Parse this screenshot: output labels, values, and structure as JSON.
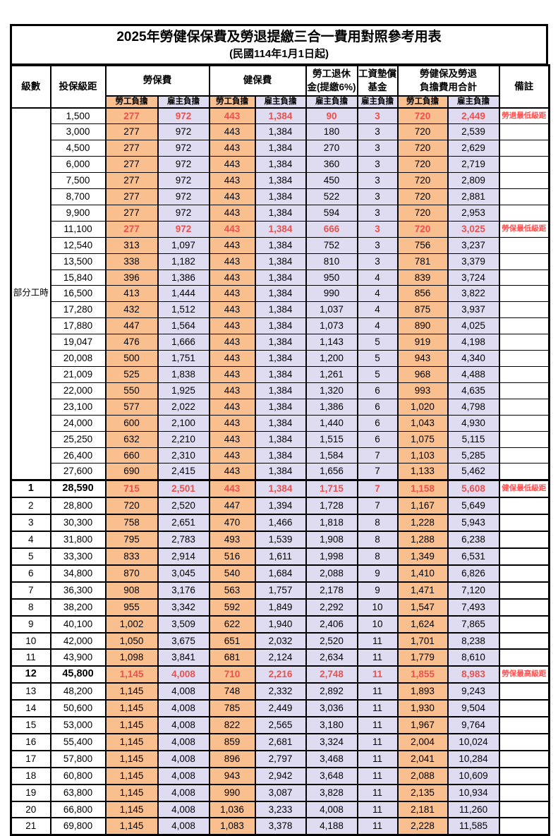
{
  "title": "2025年勞健保保費及勞退提繳三合一費用對照參考用表",
  "subtitle": "(民國114年1月1日起)",
  "header": {
    "level": "級數",
    "bracket": "投保級距",
    "labor_insurance": "勞保費",
    "health_insurance": "健保費",
    "pension_line1": "勞工退休",
    "pension_line2": "金(提繳6%)",
    "wage_fund_line1": "工資墊償",
    "wage_fund_line2": "基金",
    "total_line1": "勞健保及勞退",
    "total_line2": "負擔費用合計",
    "note": "備註",
    "employee": "勞工負擔",
    "employer": "雇主負擔"
  },
  "part_time_label": "部分工時",
  "colors": {
    "employee_bg": "#fabf8f",
    "employer_bg": "#dfdcf2",
    "highlight_text": "#e8524e",
    "note_text": "#ff5050",
    "border": "#000000"
  },
  "rows": [
    {
      "level": "",
      "bracket": "1,500",
      "values": [
        "277",
        "972",
        "443",
        "1,384",
        "90",
        "3",
        "720",
        "2,449"
      ],
      "note": "勞退最低級距",
      "highlight": true,
      "bold": false
    },
    {
      "level": "",
      "bracket": "3,000",
      "values": [
        "277",
        "972",
        "443",
        "1,384",
        "180",
        "3",
        "720",
        "2,539"
      ],
      "note": "",
      "highlight": false,
      "bold": false
    },
    {
      "level": "",
      "bracket": "4,500",
      "values": [
        "277",
        "972",
        "443",
        "1,384",
        "270",
        "3",
        "720",
        "2,629"
      ],
      "note": "",
      "highlight": false,
      "bold": false
    },
    {
      "level": "",
      "bracket": "6,000",
      "values": [
        "277",
        "972",
        "443",
        "1,384",
        "360",
        "3",
        "720",
        "2,719"
      ],
      "note": "",
      "highlight": false,
      "bold": false
    },
    {
      "level": "",
      "bracket": "7,500",
      "values": [
        "277",
        "972",
        "443",
        "1,384",
        "450",
        "3",
        "720",
        "2,809"
      ],
      "note": "",
      "highlight": false,
      "bold": false
    },
    {
      "level": "",
      "bracket": "8,700",
      "values": [
        "277",
        "972",
        "443",
        "1,384",
        "522",
        "3",
        "720",
        "2,881"
      ],
      "note": "",
      "highlight": false,
      "bold": false
    },
    {
      "level": "",
      "bracket": "9,900",
      "values": [
        "277",
        "972",
        "443",
        "1,384",
        "594",
        "3",
        "720",
        "2,953"
      ],
      "note": "",
      "highlight": false,
      "bold": false
    },
    {
      "level": "",
      "bracket": "11,100",
      "values": [
        "277",
        "972",
        "443",
        "1,384",
        "666",
        "3",
        "720",
        "3,025"
      ],
      "note": "勞保最低級距",
      "highlight": true,
      "bold": false
    },
    {
      "level": "",
      "bracket": "12,540",
      "values": [
        "313",
        "1,097",
        "443",
        "1,384",
        "752",
        "3",
        "756",
        "3,237"
      ],
      "note": "",
      "highlight": false,
      "bold": false
    },
    {
      "level": "",
      "bracket": "13,500",
      "values": [
        "338",
        "1,182",
        "443",
        "1,384",
        "810",
        "3",
        "781",
        "3,379"
      ],
      "note": "",
      "highlight": false,
      "bold": false
    },
    {
      "level": "",
      "bracket": "15,840",
      "values": [
        "396",
        "1,386",
        "443",
        "1,384",
        "950",
        "4",
        "839",
        "3,724"
      ],
      "note": "",
      "highlight": false,
      "bold": false
    },
    {
      "level": "",
      "bracket": "16,500",
      "values": [
        "413",
        "1,444",
        "443",
        "1,384",
        "990",
        "4",
        "856",
        "3,822"
      ],
      "note": "",
      "highlight": false,
      "bold": false
    },
    {
      "level": "",
      "bracket": "17,280",
      "values": [
        "432",
        "1,512",
        "443",
        "1,384",
        "1,037",
        "4",
        "875",
        "3,937"
      ],
      "note": "",
      "highlight": false,
      "bold": false
    },
    {
      "level": "",
      "bracket": "17,880",
      "values": [
        "447",
        "1,564",
        "443",
        "1,384",
        "1,073",
        "4",
        "890",
        "4,025"
      ],
      "note": "",
      "highlight": false,
      "bold": false
    },
    {
      "level": "",
      "bracket": "19,047",
      "values": [
        "476",
        "1,666",
        "443",
        "1,384",
        "1,143",
        "5",
        "919",
        "4,198"
      ],
      "note": "",
      "highlight": false,
      "bold": false
    },
    {
      "level": "",
      "bracket": "20,008",
      "values": [
        "500",
        "1,751",
        "443",
        "1,384",
        "1,200",
        "5",
        "943",
        "4,340"
      ],
      "note": "",
      "highlight": false,
      "bold": false
    },
    {
      "level": "",
      "bracket": "21,009",
      "values": [
        "525",
        "1,838",
        "443",
        "1,384",
        "1,261",
        "5",
        "968",
        "4,488"
      ],
      "note": "",
      "highlight": false,
      "bold": false
    },
    {
      "level": "",
      "bracket": "22,000",
      "values": [
        "550",
        "1,925",
        "443",
        "1,384",
        "1,320",
        "6",
        "993",
        "4,635"
      ],
      "note": "",
      "highlight": false,
      "bold": false
    },
    {
      "level": "",
      "bracket": "23,100",
      "values": [
        "577",
        "2,022",
        "443",
        "1,384",
        "1,386",
        "6",
        "1,020",
        "4,798"
      ],
      "note": "",
      "highlight": false,
      "bold": false
    },
    {
      "level": "",
      "bracket": "24,000",
      "values": [
        "600",
        "2,100",
        "443",
        "1,384",
        "1,440",
        "6",
        "1,043",
        "4,930"
      ],
      "note": "",
      "highlight": false,
      "bold": false
    },
    {
      "level": "",
      "bracket": "25,250",
      "values": [
        "632",
        "2,210",
        "443",
        "1,384",
        "1,515",
        "6",
        "1,075",
        "5,115"
      ],
      "note": "",
      "highlight": false,
      "bold": false
    },
    {
      "level": "",
      "bracket": "26,400",
      "values": [
        "660",
        "2,310",
        "443",
        "1,384",
        "1,584",
        "7",
        "1,103",
        "5,285"
      ],
      "note": "",
      "highlight": false,
      "bold": false
    },
    {
      "level": "",
      "bracket": "27,600",
      "values": [
        "690",
        "2,415",
        "443",
        "1,384",
        "1,656",
        "7",
        "1,133",
        "5,462"
      ],
      "note": "",
      "highlight": false,
      "bold": false
    },
    {
      "level": "1",
      "bracket": "28,590",
      "values": [
        "715",
        "2,501",
        "443",
        "1,384",
        "1,715",
        "7",
        "1,158",
        "5,608"
      ],
      "note": "健保最低級距",
      "highlight": true,
      "bold": true
    },
    {
      "level": "2",
      "bracket": "28,800",
      "values": [
        "720",
        "2,520",
        "447",
        "1,394",
        "1,728",
        "7",
        "1,167",
        "5,649"
      ],
      "note": "",
      "highlight": false,
      "bold": false
    },
    {
      "level": "3",
      "bracket": "30,300",
      "values": [
        "758",
        "2,651",
        "470",
        "1,466",
        "1,818",
        "8",
        "1,228",
        "5,943"
      ],
      "note": "",
      "highlight": false,
      "bold": false
    },
    {
      "level": "4",
      "bracket": "31,800",
      "values": [
        "795",
        "2,783",
        "493",
        "1,539",
        "1,908",
        "8",
        "1,288",
        "6,238"
      ],
      "note": "",
      "highlight": false,
      "bold": false
    },
    {
      "level": "5",
      "bracket": "33,300",
      "values": [
        "833",
        "2,914",
        "516",
        "1,611",
        "1,998",
        "8",
        "1,349",
        "6,531"
      ],
      "note": "",
      "highlight": false,
      "bold": false
    },
    {
      "level": "6",
      "bracket": "34,800",
      "values": [
        "870",
        "3,045",
        "540",
        "1,684",
        "2,088",
        "9",
        "1,410",
        "6,826"
      ],
      "note": "",
      "highlight": false,
      "bold": false
    },
    {
      "level": "7",
      "bracket": "36,300",
      "values": [
        "908",
        "3,176",
        "563",
        "1,757",
        "2,178",
        "9",
        "1,471",
        "7,120"
      ],
      "note": "",
      "highlight": false,
      "bold": false
    },
    {
      "level": "8",
      "bracket": "38,200",
      "values": [
        "955",
        "3,342",
        "592",
        "1,849",
        "2,292",
        "10",
        "1,547",
        "7,493"
      ],
      "note": "",
      "highlight": false,
      "bold": false
    },
    {
      "level": "9",
      "bracket": "40,100",
      "values": [
        "1,002",
        "3,509",
        "622",
        "1,940",
        "2,406",
        "10",
        "1,624",
        "7,865"
      ],
      "note": "",
      "highlight": false,
      "bold": false
    },
    {
      "level": "10",
      "bracket": "42,000",
      "values": [
        "1,050",
        "3,675",
        "651",
        "2,032",
        "2,520",
        "11",
        "1,701",
        "8,238"
      ],
      "note": "",
      "highlight": false,
      "bold": false
    },
    {
      "level": "11",
      "bracket": "43,900",
      "values": [
        "1,098",
        "3,841",
        "681",
        "2,124",
        "2,634",
        "11",
        "1,779",
        "8,610"
      ],
      "note": "",
      "highlight": false,
      "bold": false
    },
    {
      "level": "12",
      "bracket": "45,800",
      "values": [
        "1,145",
        "4,008",
        "710",
        "2,216",
        "2,748",
        "11",
        "1,855",
        "8,983"
      ],
      "note": "勞保最高級距",
      "highlight": true,
      "bold": true
    },
    {
      "level": "13",
      "bracket": "48,200",
      "values": [
        "1,145",
        "4,008",
        "748",
        "2,332",
        "2,892",
        "11",
        "1,893",
        "9,243"
      ],
      "note": "",
      "highlight": false,
      "bold": false
    },
    {
      "level": "14",
      "bracket": "50,600",
      "values": [
        "1,145",
        "4,008",
        "785",
        "2,449",
        "3,036",
        "11",
        "1,930",
        "9,504"
      ],
      "note": "",
      "highlight": false,
      "bold": false
    },
    {
      "level": "15",
      "bracket": "53,000",
      "values": [
        "1,145",
        "4,008",
        "822",
        "2,565",
        "3,180",
        "11",
        "1,967",
        "9,764"
      ],
      "note": "",
      "highlight": false,
      "bold": false
    },
    {
      "level": "16",
      "bracket": "55,400",
      "values": [
        "1,145",
        "4,008",
        "859",
        "2,681",
        "3,324",
        "11",
        "2,004",
        "10,024"
      ],
      "note": "",
      "highlight": false,
      "bold": false
    },
    {
      "level": "17",
      "bracket": "57,800",
      "values": [
        "1,145",
        "4,008",
        "896",
        "2,797",
        "3,468",
        "11",
        "2,041",
        "10,284"
      ],
      "note": "",
      "highlight": false,
      "bold": false
    },
    {
      "level": "18",
      "bracket": "60,800",
      "values": [
        "1,145",
        "4,008",
        "943",
        "2,942",
        "3,648",
        "11",
        "2,088",
        "10,609"
      ],
      "note": "",
      "highlight": false,
      "bold": false
    },
    {
      "level": "19",
      "bracket": "63,800",
      "values": [
        "1,145",
        "4,008",
        "990",
        "3,087",
        "3,828",
        "11",
        "2,135",
        "10,934"
      ],
      "note": "",
      "highlight": false,
      "bold": false
    },
    {
      "level": "20",
      "bracket": "66,800",
      "values": [
        "1,145",
        "4,008",
        "1,036",
        "3,233",
        "4,008",
        "11",
        "2,181",
        "11,260"
      ],
      "note": "",
      "highlight": false,
      "bold": false
    },
    {
      "level": "21",
      "bracket": "69,800",
      "values": [
        "1,145",
        "4,008",
        "1,083",
        "3,378",
        "4,188",
        "11",
        "2,228",
        "11,585"
      ],
      "note": "",
      "highlight": false,
      "bold": false
    }
  ]
}
